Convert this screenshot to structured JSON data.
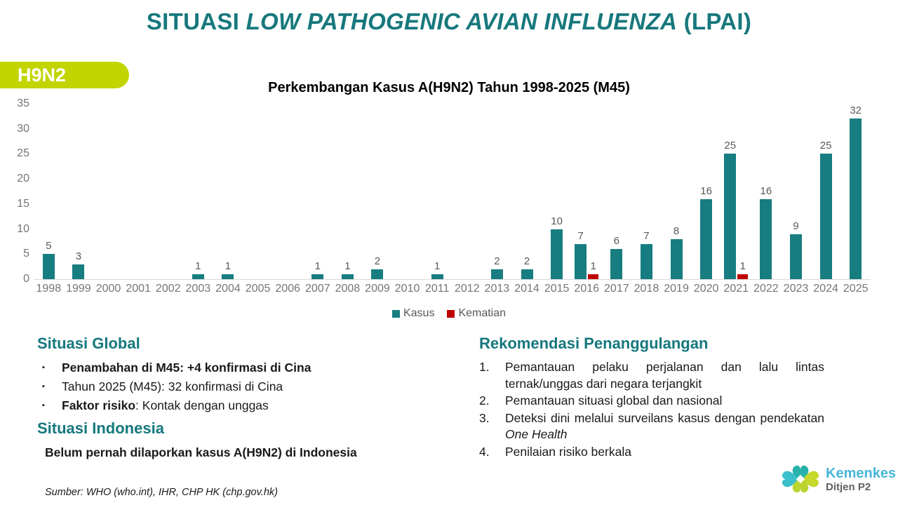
{
  "colors": {
    "title_teal": "#17787d",
    "heading_teal": "#15787e",
    "badge_lime": "#c3d500",
    "kasus_teal": "#177d80",
    "kematian_red": "#c00000",
    "axis_gray": "#757575",
    "value_label_gray": "#595959",
    "baseline_gray": "#d9d9d9",
    "logo_cyan": "#48b5d8",
    "logo_gray": "#5f6062"
  },
  "header": {
    "title_prefix": "SITUASI ",
    "title_italic": "LOW PATHOGENIC AVIAN INFLUENZA",
    "title_suffix": " (LPAI)",
    "badge": "H9N2"
  },
  "chart_data": {
    "type": "bar",
    "title": "Perkembangan Kasus A(H9N2) Tahun 1998-2025 (M45)",
    "categories": [
      "1998",
      "1999",
      "2000",
      "2001",
      "2002",
      "2003",
      "2004",
      "2005",
      "2006",
      "2007",
      "2008",
      "2009",
      "2010",
      "2011",
      "2012",
      "2013",
      "2014",
      "2015",
      "2016",
      "2017",
      "2018",
      "2019",
      "2020",
      "2021",
      "2022",
      "2023",
      "2024",
      "2025"
    ],
    "series": [
      {
        "name": "Kasus",
        "color": "#177d80",
        "values": [
          5,
          3,
          0,
          0,
          0,
          1,
          1,
          0,
          0,
          1,
          1,
          2,
          0,
          1,
          0,
          2,
          2,
          10,
          7,
          6,
          7,
          8,
          16,
          25,
          16,
          9,
          25,
          32
        ]
      },
      {
        "name": "Kematian",
        "color": "#c00000",
        "values": [
          0,
          0,
          0,
          0,
          0,
          0,
          0,
          0,
          0,
          0,
          0,
          0,
          0,
          0,
          0,
          0,
          0,
          0,
          1,
          0,
          0,
          0,
          0,
          1,
          0,
          0,
          0,
          0
        ]
      }
    ],
    "ylim": [
      0,
      35
    ],
    "yticks": [
      0,
      5,
      10,
      15,
      20,
      25,
      30,
      35
    ],
    "grid": false,
    "legend_position": "bottom",
    "value_labels": "shown above non-zero bars"
  },
  "sections": {
    "global": {
      "heading": "Situasi Global",
      "bullets": [
        {
          "parts": [
            {
              "t": "Penambahan di M45: +4 konfirmasi di Cina",
              "b": true
            }
          ]
        },
        {
          "parts": [
            {
              "t": "Tahun 2025 (M45): 32 konfirmasi di Cina"
            }
          ]
        },
        {
          "parts": [
            {
              "t": "Faktor risiko",
              "b": true
            },
            {
              "t": ": Kontak dengan unggas"
            }
          ]
        }
      ]
    },
    "indonesia": {
      "heading": "Situasi Indonesia",
      "text": "Belum pernah dilaporkan kasus A(H9N2) di Indonesia"
    },
    "rekomendasi": {
      "heading": "Rekomendasi Penanggulangan",
      "items": [
        {
          "parts": [
            {
              "t": "Pemantauan pelaku perjalanan dan lalu lintas ternak/unggas dari negara terjangkit"
            }
          ]
        },
        {
          "parts": [
            {
              "t": "Pemantauan situasi global dan nasional"
            }
          ]
        },
        {
          "parts": [
            {
              "t": "Deteksi dini melalui surveilans kasus dengan pendekatan "
            },
            {
              "t": "One Health",
              "i": true
            }
          ]
        },
        {
          "parts": [
            {
              "t": "Penilaian risiko berkala"
            }
          ]
        }
      ]
    }
  },
  "footer": {
    "source": "Sumber: WHO (who.int), IHR, CHP HK (chp.gov.hk)"
  },
  "logo": {
    "name": "Kemenkes",
    "subtitle": "Ditjen P2"
  }
}
